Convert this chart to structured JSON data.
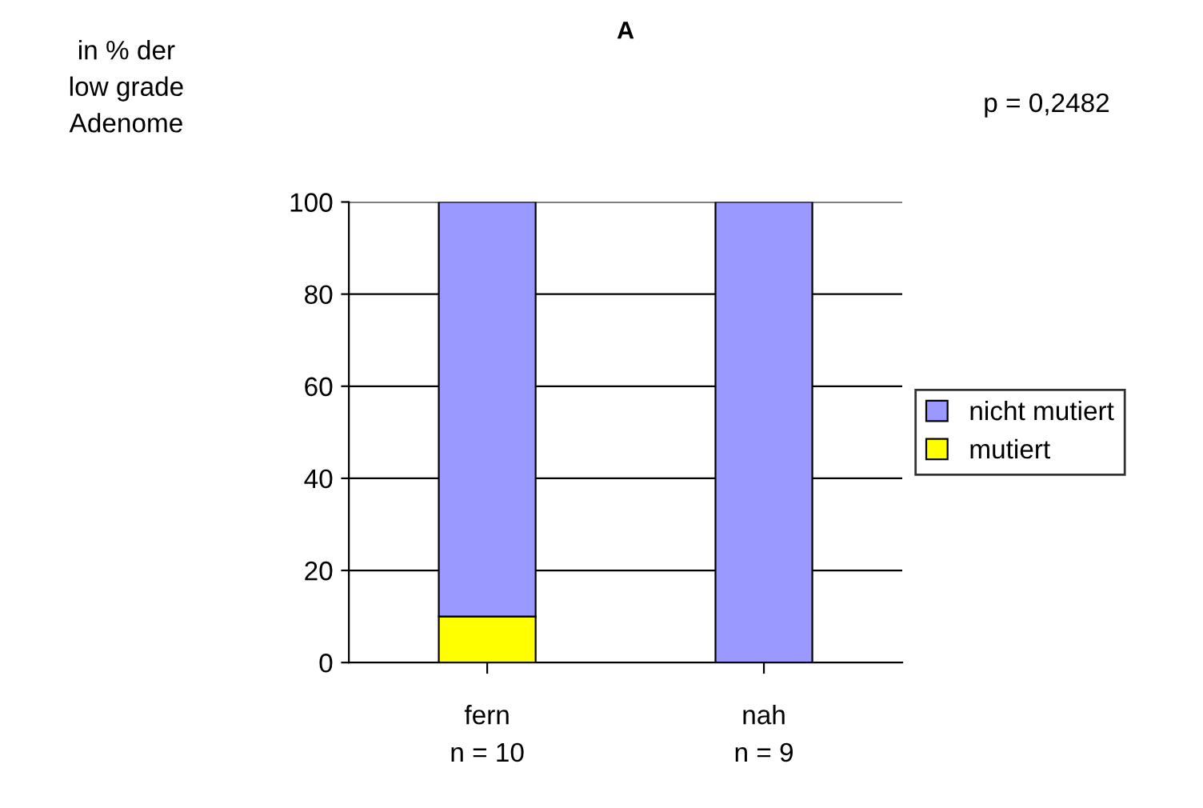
{
  "chart_data": {
    "type": "bar",
    "title": "A",
    "ylabel": "in % der\nlow grade\nAdenome",
    "categories": [
      "fern",
      "nah"
    ],
    "stacked": true,
    "series": [
      {
        "name": "mutiert",
        "color": "#ffff00",
        "values": [
          10,
          0
        ]
      },
      {
        "name": "nicht mutiert",
        "color": "#9999ff",
        "values": [
          90,
          100
        ]
      }
    ],
    "ylim": [
      0,
      100
    ],
    "yticks": [
      0,
      20,
      40,
      60,
      80,
      100
    ],
    "grid": "y",
    "legend": "right",
    "annotations": [
      "p = 0,2482",
      "n = 10",
      "n = 9"
    ]
  }
}
